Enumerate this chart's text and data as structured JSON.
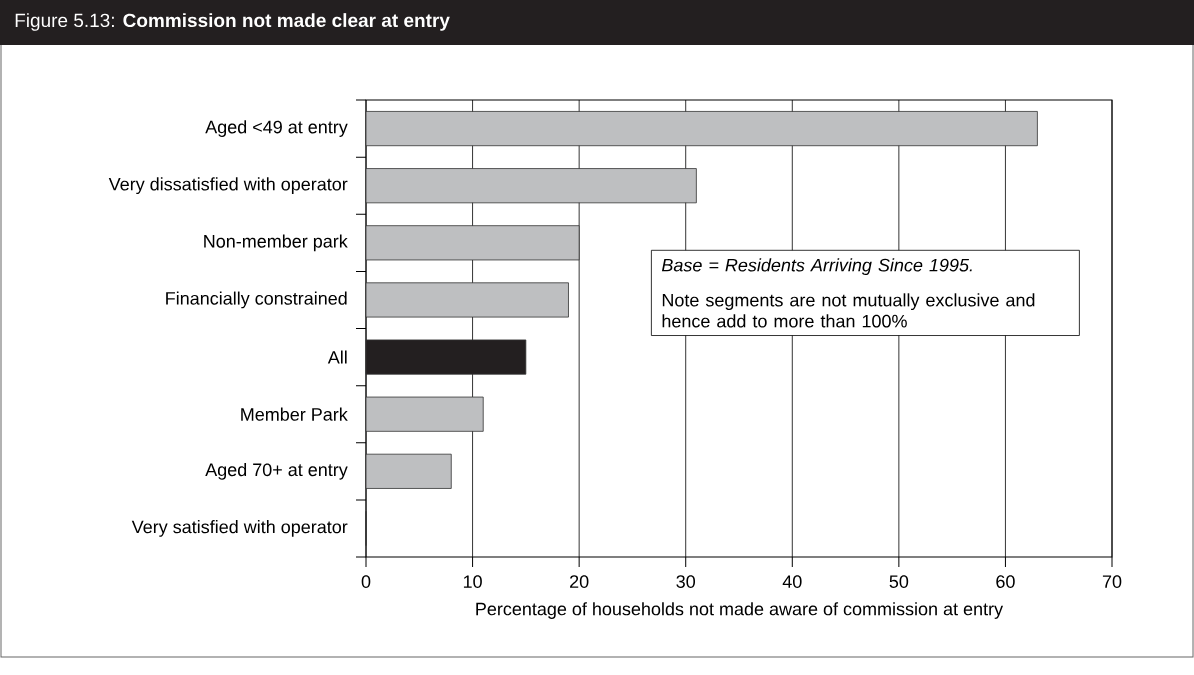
{
  "chart_data": {
    "type": "bar",
    "orientation": "horizontal",
    "title": "Figure 5.13: **Commission not made clear at entry**",
    "xlabel": "Percentage of households not made aware of commission at entry",
    "categories": [
      "Aged <49 at entry",
      "Very dissatisfied with operator",
      "Non-member park",
      "Financially constrained",
      "All",
      "Member Park",
      "Aged 70+ at entry",
      "Very satisfied with operator"
    ],
    "values": [
      63,
      31,
      20,
      19,
      15,
      11,
      8,
      0
    ],
    "colors": [
      "#bebfc1",
      "#bebfc1",
      "#bebfc1",
      "#bebfc1",
      "#231f20",
      "#bebfc1",
      "#bebfc1",
      "#bebfc1"
    ],
    "xlim": [
      0,
      70
    ],
    "xticks": [
      0,
      10,
      20,
      30,
      40,
      50,
      60,
      70
    ],
    "grid": "x",
    "annotations": [
      "Base = Residents Arriving Since 1995.",
      "Note segments are not mutually exclusive and hence add to more than 100%"
    ]
  }
}
